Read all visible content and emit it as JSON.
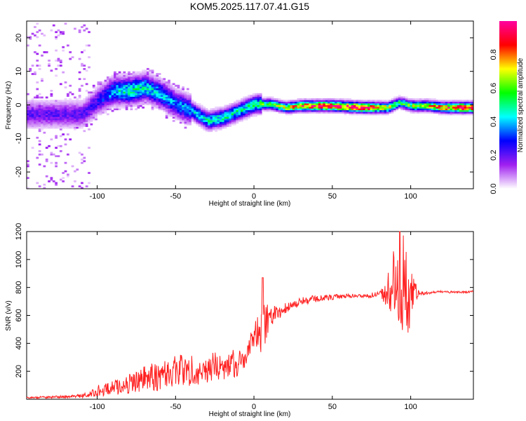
{
  "title": "KOM5.2025.117.07.41.G15",
  "chart_data": [
    {
      "type": "heatmap",
      "xlabel": "Height of straight line (km)",
      "ylabel": "Frequency (Hz)",
      "xlim": [
        -145,
        140
      ],
      "ylim": [
        -25,
        25
      ],
      "xticks": [
        -100,
        -50,
        0,
        50,
        100
      ],
      "yticks": [
        -20,
        -10,
        0,
        10,
        20
      ],
      "colorbar": {
        "label": "Normalized spectral amplitude",
        "range": [
          0,
          1
        ],
        "ticks": [
          0.0,
          0.2,
          0.4,
          0.6,
          0.8
        ],
        "colormap": [
          "#ffffff",
          "#a020f0",
          "#0000ff",
          "#00ffff",
          "#00ff00",
          "#ffff00",
          "#ff0000",
          "#ff00a0"
        ]
      },
      "ridge": {
        "x": [
          -110,
          -100,
          -90,
          -80,
          -70,
          -60,
          -50,
          -40,
          -30,
          -20,
          -10,
          0,
          10,
          20,
          30,
          50,
          70,
          85,
          92,
          100,
          110,
          120,
          130,
          140
        ],
        "y": [
          -3,
          1,
          4,
          4,
          5,
          3,
          0,
          -2,
          -5,
          -4,
          -2,
          0,
          0,
          -1,
          -0.5,
          -0.5,
          -1,
          -1,
          0.5,
          -0.5,
          -0.5,
          -1,
          -1,
          -1
        ],
        "amplitude": [
          0.2,
          0.25,
          0.4,
          0.5,
          0.45,
          0.4,
          0.35,
          0.4,
          0.45,
          0.5,
          0.45,
          0.5,
          0.6,
          0.65,
          0.85,
          0.9,
          0.95,
          0.7,
          0.5,
          0.6,
          0.7,
          0.8,
          0.9,
          0.85
        ]
      },
      "noise_region_x": [
        -145,
        -105
      ]
    },
    {
      "type": "line",
      "xlabel": "Height of straight line (km)",
      "ylabel": "SNR (v/v)",
      "xlim": [
        -145,
        140
      ],
      "ylim": [
        0,
        1200
      ],
      "xticks": [
        -100,
        -50,
        0,
        50,
        100
      ],
      "yticks": [
        200,
        400,
        600,
        800,
        1000,
        1200
      ],
      "color": "#ff2020",
      "series": [
        {
          "x": [
            -145,
            -130,
            -115,
            -105,
            -100,
            -90,
            -80,
            -70,
            -60,
            -50,
            -40,
            -30,
            -20,
            -10,
            -5,
            0,
            5,
            10,
            20,
            30,
            40,
            50,
            60,
            70,
            80,
            85,
            90,
            95,
            100,
            105,
            110,
            120,
            130,
            140
          ],
          "y": [
            10,
            15,
            20,
            30,
            60,
            80,
            110,
            150,
            170,
            200,
            210,
            220,
            240,
            260,
            300,
            450,
            500,
            600,
            650,
            700,
            720,
            730,
            740,
            740,
            750,
            780,
            820,
            700,
            760,
            760,
            760,
            770,
            765,
            770
          ],
          "noise_amplitude": [
            6,
            8,
            10,
            20,
            40,
            50,
            70,
            90,
            110,
            130,
            110,
            110,
            100,
            100,
            90,
            80,
            180,
            100,
            40,
            30,
            25,
            20,
            15,
            15,
            20,
            120,
            300,
            500,
            200,
            15,
            10,
            8,
            8,
            8
          ]
        }
      ]
    }
  ]
}
